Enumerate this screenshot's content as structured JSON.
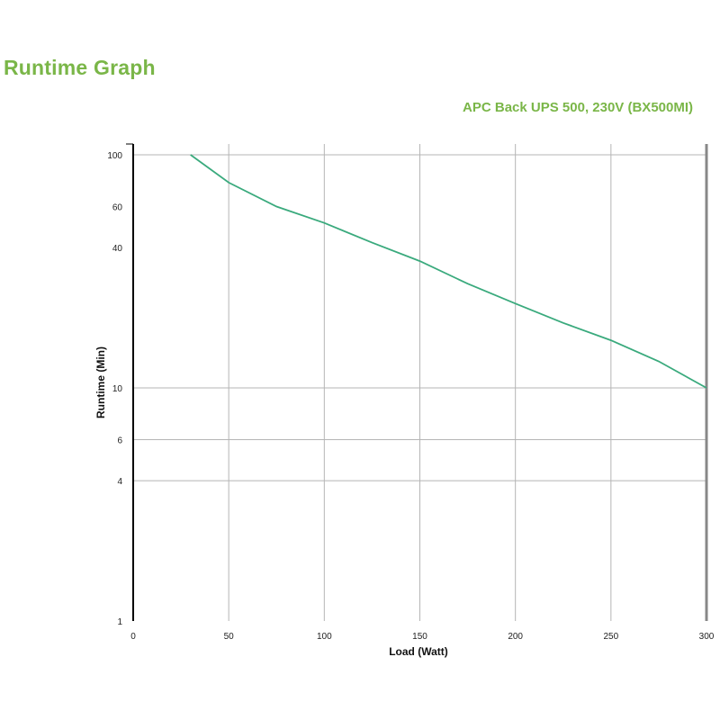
{
  "page": {
    "title": "Runtime Graph"
  },
  "chart_data": {
    "type": "line",
    "subtitle": "APC Back UPS 500, 230V (BX500MI)",
    "xlabel": "Load (Watt)",
    "ylabel": "Runtime (Min)",
    "xscale": "linear",
    "yscale": "log",
    "xlim": [
      0,
      300
    ],
    "ylim": [
      1,
      100
    ],
    "x_ticks": [
      0,
      50,
      100,
      150,
      200,
      250,
      300
    ],
    "y_ticks": [
      1,
      4,
      6,
      10,
      40,
      60,
      100
    ],
    "y_tick_labels": [
      "1",
      "4",
      "6",
      "10",
      "40",
      "60",
      "100"
    ],
    "y_gridlines": [
      4,
      6,
      10,
      100
    ],
    "x_gridlines": [
      50,
      100,
      150,
      200,
      250,
      300
    ],
    "grid": true,
    "series": [
      {
        "color": "#3aaa7d",
        "x": [
          30,
          50,
          75,
          100,
          125,
          150,
          175,
          200,
          225,
          250,
          275,
          300
        ],
        "y": [
          100,
          76,
          60,
          51,
          42,
          35,
          28,
          23,
          19,
          16,
          13,
          10
        ]
      }
    ]
  }
}
